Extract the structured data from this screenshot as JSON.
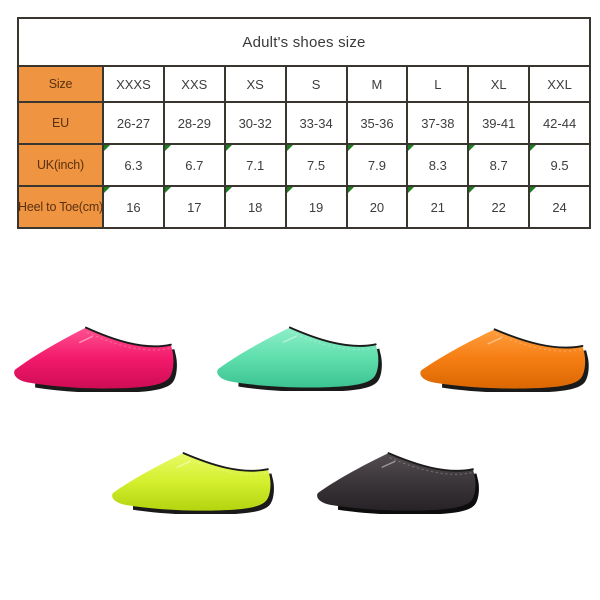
{
  "page": {
    "background": "#ffffff"
  },
  "size_chart": {
    "title": "Adult's shoes size",
    "header_row": {
      "label": "Size",
      "values": [
        "XXXS",
        "XXS",
        "XS",
        "S",
        "M",
        "L",
        "XL",
        "XXL"
      ]
    },
    "rows": [
      {
        "label": "EU",
        "values": [
          "26-27",
          "28-29",
          "30-32",
          "33-34",
          "35-36",
          "37-38",
          "39-41",
          "42-44"
        ],
        "excel_markers": false
      },
      {
        "label": "UK(inch)",
        "values": [
          "6.3",
          "6.7",
          "7.1",
          "7.5",
          "7.9",
          "8.3",
          "8.7",
          "9.5"
        ],
        "excel_markers": true
      },
      {
        "label": "Heel to Toe(cm)",
        "values": [
          "16",
          "17",
          "18",
          "19",
          "20",
          "21",
          "22",
          "24"
        ],
        "excel_markers": true
      }
    ],
    "colors": {
      "label_bg": "#ef9440",
      "label_text": "#5a3110",
      "cell_text": "#3d3d3d",
      "title_text": "#3a3a3a",
      "border": "#39352f",
      "marker_green": "#1e7d1e"
    }
  },
  "shoes": [
    {
      "id": "pink",
      "label": "pink water shoe",
      "color": "#f31a6b",
      "color_light": "#ff5292",
      "color_dark": "#cf0c55",
      "sole_color": "#1a1a1a"
    },
    {
      "id": "mint",
      "label": "mint green water shoe",
      "color": "#5fdfac",
      "color_light": "#8feec9",
      "color_dark": "#3cc392",
      "sole_color": "#1a1a1a"
    },
    {
      "id": "orange",
      "label": "orange water shoe",
      "color": "#f67d13",
      "color_light": "#ff9f3e",
      "color_dark": "#d96703",
      "sole_color": "#1a1a1a"
    },
    {
      "id": "lime",
      "label": "fluorescent green water shoe",
      "color": "#d3ef2e",
      "color_light": "#e9fb66",
      "color_dark": "#b4d410",
      "sole_color": "#1a1a1a"
    },
    {
      "id": "black",
      "label": "black water shoe",
      "color": "#3b363a",
      "color_light": "#544e53",
      "color_dark": "#262226",
      "sole_color": "#0d0d0d"
    }
  ]
}
